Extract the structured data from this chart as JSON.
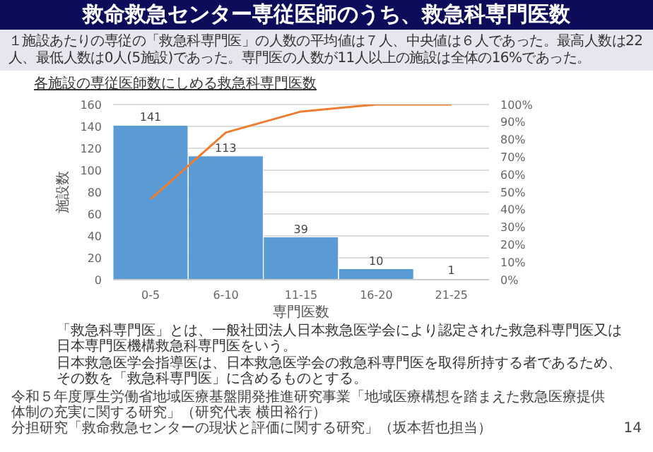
{
  "chart_data": {
    "type": "bar",
    "title": "救命救急センター専従医師のうち、救急科専門医数",
    "subtitle": "１施設あたりの専従の「救急科専門医」の人数の平均値は７人、中央値は６人であった。最高人数は22人、最低人数は0人(5施設)であった。専門医の人数が11人以上の施設は全体の16%であった。",
    "legend_title": "各施設の専従医師数にしめる救急科専門医数",
    "xlabel": "専門医数",
    "ylabel": "施設数",
    "categories": [
      "0-5",
      "6-10",
      "11-15",
      "16-20",
      "21-25"
    ],
    "series": [
      {
        "color": "#5b9bd5",
        "values": [
          141,
          113,
          39,
          10,
          1
        ],
        "value_labels": [
          "141",
          "113",
          "39",
          "10",
          "1"
        ]
      },
      {
        "type": "line",
        "axis": "y2",
        "color": "#ed7d31",
        "values": [
          46,
          84,
          96,
          100,
          100
        ]
      }
    ],
    "ylim": [
      0,
      160
    ],
    "yticks": [
      0,
      20,
      40,
      60,
      80,
      100,
      120,
      140,
      160
    ],
    "y2lim": [
      0,
      100
    ],
    "y2ticks": [
      {
        "value": 0,
        "label": "0%"
      },
      {
        "value": 10,
        "label": "10%"
      },
      {
        "value": 20,
        "label": "20%"
      },
      {
        "value": 30,
        "label": "30%"
      },
      {
        "value": 40,
        "label": "40%"
      },
      {
        "value": 50,
        "label": "50%"
      },
      {
        "value": 60,
        "label": "60%"
      },
      {
        "value": 70,
        "label": "70%"
      },
      {
        "value": 80,
        "label": "80%"
      },
      {
        "value": 90,
        "label": "90%"
      },
      {
        "value": 100,
        "label": "100%"
      }
    ],
    "grid": "y",
    "legend": false,
    "marker": "none",
    "annotations": [
      "「救急科専門医」とは、一般社団法人日本救急医学会により認定された救急科専門医又は日本専門医機構救急科専門医をいう。",
      "日本救急医学会指導医は、日本救急医学会の救急科専門医を取得所持する者であるため、その数を「救急科専門医」に含めるものとする。",
      "令和５年度厚生労働省地域医療基盤開発推進研究事業「地域医療構想を踏まえた救急医療提供体制の充実に関する研究」（研究代表 横田裕行）",
      "分担研究「救命救急センターの現状と評価に関する研究」（坂本哲也担当）",
      "14"
    ]
  }
}
